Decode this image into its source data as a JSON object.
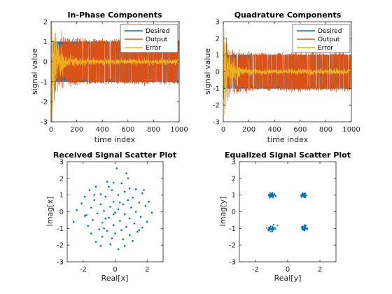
{
  "chart_data": [
    {
      "type": "line",
      "title": "In-Phase Components",
      "xlabel": "time index",
      "ylabel": "signal value",
      "xlim": [
        0,
        1000
      ],
      "ylim": [
        -3,
        2
      ],
      "xticks": [
        "0",
        "200",
        "400",
        "600",
        "800",
        "1000"
      ],
      "yticks": [
        "-3",
        "-2",
        "-1",
        "0",
        "1",
        "2"
      ],
      "legend": "top-right",
      "series": [
        {
          "name": "Desired",
          "color": "#0072BD",
          "description_levels": [
            -1,
            1
          ]
        },
        {
          "name": "Output",
          "color": "#D95319",
          "description_levels": [
            -1.1,
            1.1
          ]
        },
        {
          "name": "Error",
          "color": "#EDB120",
          "description_levels": [
            -2.6,
            1.9
          ]
        }
      ]
    },
    {
      "type": "line",
      "title": "Quadrature Components",
      "xlabel": "time index",
      "ylabel": "signal value",
      "xlim": [
        0,
        1000
      ],
      "ylim": [
        -3,
        3
      ],
      "xticks": [
        "0",
        "200",
        "400",
        "600",
        "800",
        "1000"
      ],
      "yticks": [
        "-3",
        "-2",
        "-1",
        "0",
        "1",
        "2",
        "3"
      ],
      "legend": "top-right",
      "series": [
        {
          "name": "Desired",
          "color": "#0072BD"
        },
        {
          "name": "Output",
          "color": "#D95319"
        },
        {
          "name": "Error",
          "color": "#EDB120"
        }
      ]
    },
    {
      "type": "scatter",
      "title": "Received Signal Scatter Plot",
      "xlabel": "Real[x]",
      "ylabel": "Imag[x]",
      "xlim": [
        -3,
        3
      ],
      "ylim": [
        -3,
        3
      ],
      "xticks": [
        "-2",
        "0",
        "2"
      ],
      "yticks": [
        "-3",
        "-2",
        "-1",
        "0",
        "1",
        "2",
        "3"
      ],
      "color": "#0072BD",
      "points": [
        [
          0.1,
          2.6
        ],
        [
          0.7,
          2.3
        ],
        [
          -0.5,
          1.8
        ],
        [
          -0.1,
          1.75
        ],
        [
          0.4,
          1.7
        ],
        [
          -1.2,
          1.5
        ],
        [
          -0.4,
          1.5
        ],
        [
          0.9,
          1.4
        ],
        [
          1.3,
          1.35
        ],
        [
          -1.6,
          1.3
        ],
        [
          -0.2,
          1.3
        ],
        [
          0.6,
          1.2
        ],
        [
          1.7,
          1.1
        ],
        [
          -0.9,
          1.05
        ],
        [
          0.2,
          1.0
        ],
        [
          -1.9,
          0.9
        ],
        [
          -0.6,
          0.9
        ],
        [
          1.1,
          0.85
        ],
        [
          -1.3,
          0.7
        ],
        [
          0.8,
          0.7
        ],
        [
          2.1,
          0.6
        ],
        [
          -0.1,
          0.6
        ],
        [
          1.5,
          0.55
        ],
        [
          -2.1,
          0.5
        ],
        [
          -0.9,
          0.45
        ],
        [
          0.5,
          0.45
        ],
        [
          1.9,
          0.35
        ],
        [
          -0.3,
          0.3
        ],
        [
          -1.5,
          0.25
        ],
        [
          1.0,
          0.25
        ],
        [
          0.2,
          0.15
        ],
        [
          -2.4,
          0.1
        ],
        [
          -0.7,
          0.05
        ],
        [
          1.3,
          0.0
        ],
        [
          2.3,
          -0.05
        ],
        [
          0.0,
          -0.05
        ],
        [
          -1.1,
          -0.1
        ],
        [
          0.6,
          -0.15
        ],
        [
          -1.9,
          -0.25
        ],
        [
          1.6,
          -0.3
        ],
        [
          -0.4,
          -0.35
        ],
        [
          0.9,
          -0.4
        ],
        [
          -1.4,
          -0.5
        ],
        [
          0.3,
          -0.55
        ],
        [
          2.0,
          -0.6
        ],
        [
          -2.6,
          -0.6
        ],
        [
          -0.8,
          -0.65
        ],
        [
          1.2,
          -0.7
        ],
        [
          -0.1,
          -0.8
        ],
        [
          -1.7,
          -0.85
        ],
        [
          0.7,
          -0.9
        ],
        [
          1.7,
          -0.95
        ],
        [
          -1.0,
          -1.05
        ],
        [
          0.4,
          -1.1
        ],
        [
          -0.5,
          -1.15
        ],
        [
          1.4,
          -1.2
        ],
        [
          -1.5,
          -1.3
        ],
        [
          0.0,
          -1.3
        ],
        [
          0.9,
          -1.4
        ],
        [
          -0.8,
          -1.5
        ],
        [
          -0.2,
          -1.6
        ],
        [
          0.5,
          -1.65
        ],
        [
          1.1,
          -1.75
        ],
        [
          -1.2,
          -1.8
        ],
        [
          -0.3,
          -1.95
        ],
        [
          0.6,
          -2.05
        ],
        [
          -0.9,
          -2.05
        ],
        [
          0.2,
          -2.25
        ],
        [
          -0.1,
          -0.15
        ],
        [
          0.3,
          0.55
        ],
        [
          -0.6,
          -0.4
        ],
        [
          1.8,
          1.3
        ],
        [
          -1.8,
          -0.2
        ],
        [
          1.5,
          -1.1
        ],
        [
          -1.3,
          1.0
        ],
        [
          0.8,
          2.0
        ],
        [
          -0.7,
          -1.0
        ]
      ]
    },
    {
      "type": "scatter",
      "title": "Equalized Signal Scatter Plot",
      "xlabel": "Real[y]",
      "ylabel": "Imag[y]",
      "xlim": [
        -3,
        3
      ],
      "ylim": [
        -3,
        3
      ],
      "xticks": [
        "-2",
        "0",
        "2"
      ],
      "yticks": [
        "-3",
        "-2",
        "-1",
        "0",
        "1",
        "2",
        "3"
      ],
      "color": "#0072BD",
      "clusters": [
        [
          -1,
          1
        ],
        [
          1,
          1
        ],
        [
          -1,
          -1
        ],
        [
          1,
          -1
        ]
      ],
      "cluster_spread": 0.22
    }
  ]
}
